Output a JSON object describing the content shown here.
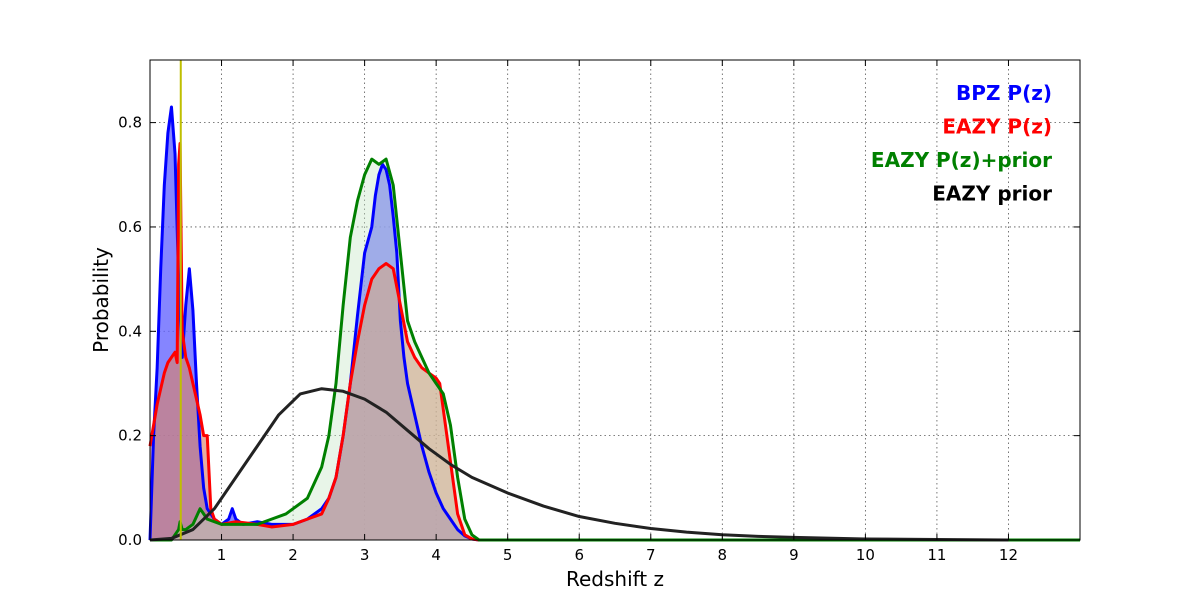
{
  "chart_data": {
    "type": "line",
    "title": "",
    "xlabel": "Redshift z",
    "ylabel": "Probability",
    "xlim": [
      0,
      13
    ],
    "ylim": [
      0,
      0.92
    ],
    "xticks": [
      1,
      2,
      3,
      4,
      5,
      6,
      7,
      8,
      9,
      10,
      11,
      12
    ],
    "yticks": [
      0.0,
      0.2,
      0.4,
      0.6,
      0.8
    ],
    "ytick_labels": [
      "0.0",
      "0.2",
      "0.4",
      "0.6",
      "0.8"
    ],
    "grid": true,
    "legend_position": "top-right",
    "vline": {
      "x": 0.43,
      "color": "#bfbf00"
    },
    "series": [
      {
        "name": "BPZ P(z)",
        "color": "#0000ff",
        "fill": "#6666ff",
        "fill_opacity": 0.8,
        "x": [
          0.0,
          0.05,
          0.1,
          0.15,
          0.2,
          0.25,
          0.3,
          0.35,
          0.4,
          0.45,
          0.5,
          0.55,
          0.6,
          0.65,
          0.7,
          0.75,
          0.8,
          0.9,
          1.0,
          1.1,
          1.15,
          1.2,
          1.3,
          1.5,
          1.7,
          2.0,
          2.2,
          2.4,
          2.5,
          2.6,
          2.7,
          2.8,
          2.9,
          3.0,
          3.1,
          3.15,
          3.2,
          3.25,
          3.3,
          3.35,
          3.4,
          3.45,
          3.5,
          3.55,
          3.6,
          3.7,
          3.8,
          3.9,
          4.0,
          4.1,
          4.2,
          4.3,
          4.4,
          4.5,
          4.6,
          5.0,
          6.0,
          8.0,
          10.0,
          12.0,
          13.0
        ],
        "y": [
          0.0,
          0.2,
          0.33,
          0.52,
          0.68,
          0.78,
          0.83,
          0.74,
          0.5,
          0.35,
          0.45,
          0.52,
          0.44,
          0.3,
          0.18,
          0.1,
          0.06,
          0.04,
          0.03,
          0.04,
          0.06,
          0.04,
          0.03,
          0.035,
          0.03,
          0.03,
          0.04,
          0.06,
          0.08,
          0.12,
          0.2,
          0.3,
          0.43,
          0.55,
          0.6,
          0.66,
          0.7,
          0.72,
          0.71,
          0.68,
          0.62,
          0.55,
          0.42,
          0.35,
          0.3,
          0.24,
          0.18,
          0.13,
          0.09,
          0.06,
          0.04,
          0.02,
          0.008,
          0.002,
          0.0,
          0.0,
          0.0,
          0.0,
          0.0,
          0.0,
          0.0
        ]
      },
      {
        "name": "EAZY P(z)",
        "color": "#ff0000",
        "fill": "#d9826b",
        "fill_opacity": 0.65,
        "x": [
          0.0,
          0.05,
          0.1,
          0.15,
          0.2,
          0.25,
          0.3,
          0.35,
          0.38,
          0.4,
          0.42,
          0.45,
          0.5,
          0.55,
          0.6,
          0.65,
          0.7,
          0.75,
          0.8,
          0.85,
          0.9,
          1.0,
          1.2,
          1.5,
          1.7,
          2.0,
          2.2,
          2.4,
          2.5,
          2.6,
          2.7,
          2.8,
          2.9,
          3.0,
          3.1,
          3.2,
          3.3,
          3.4,
          3.5,
          3.6,
          3.7,
          3.8,
          3.9,
          4.0,
          4.05,
          4.1,
          4.2,
          4.3,
          4.4,
          4.5,
          4.6,
          5.0,
          6.0,
          8.0,
          10.0,
          12.0,
          13.0
        ],
        "y": [
          0.18,
          0.22,
          0.26,
          0.29,
          0.32,
          0.34,
          0.35,
          0.36,
          0.34,
          0.72,
          0.76,
          0.4,
          0.35,
          0.33,
          0.3,
          0.27,
          0.24,
          0.2,
          0.2,
          0.06,
          0.04,
          0.03,
          0.035,
          0.03,
          0.025,
          0.03,
          0.04,
          0.05,
          0.08,
          0.12,
          0.2,
          0.3,
          0.38,
          0.45,
          0.5,
          0.52,
          0.53,
          0.52,
          0.45,
          0.38,
          0.35,
          0.33,
          0.32,
          0.31,
          0.3,
          0.25,
          0.15,
          0.05,
          0.01,
          0.002,
          0.0,
          0.0,
          0.0,
          0.0,
          0.0,
          0.0,
          0.0
        ]
      },
      {
        "name": "EAZY P(z)+prior",
        "color": "#008000",
        "fill": "#c6e6c6",
        "fill_opacity": 0.4,
        "x": [
          0.0,
          0.3,
          0.4,
          0.42,
          0.45,
          0.5,
          0.6,
          0.7,
          0.75,
          0.8,
          0.9,
          1.0,
          1.2,
          1.5,
          1.7,
          1.9,
          2.0,
          2.2,
          2.4,
          2.5,
          2.6,
          2.7,
          2.8,
          2.9,
          3.0,
          3.1,
          3.2,
          3.3,
          3.4,
          3.5,
          3.6,
          3.7,
          3.8,
          3.9,
          4.0,
          4.1,
          4.2,
          4.3,
          4.4,
          4.5,
          4.6,
          5.0,
          6.0,
          8.0,
          10.0,
          12.0,
          13.0
        ],
        "y": [
          0.0,
          0.0,
          0.02,
          0.035,
          0.02,
          0.02,
          0.03,
          0.06,
          0.05,
          0.04,
          0.035,
          0.03,
          0.03,
          0.03,
          0.04,
          0.05,
          0.06,
          0.08,
          0.14,
          0.2,
          0.3,
          0.45,
          0.58,
          0.65,
          0.7,
          0.73,
          0.72,
          0.73,
          0.68,
          0.55,
          0.42,
          0.38,
          0.35,
          0.32,
          0.3,
          0.28,
          0.22,
          0.12,
          0.04,
          0.01,
          0.0,
          0.0,
          0.0,
          0.0,
          0.0,
          0.0,
          0.0
        ]
      },
      {
        "name": "EAZY prior",
        "color": "#222222",
        "fill": null,
        "fill_opacity": 0,
        "x": [
          0.0,
          0.3,
          0.6,
          0.9,
          1.2,
          1.5,
          1.8,
          2.1,
          2.4,
          2.7,
          3.0,
          3.3,
          3.6,
          3.9,
          4.2,
          4.5,
          5.0,
          5.5,
          6.0,
          6.5,
          7.0,
          7.5,
          8.0,
          8.5,
          9.0,
          10.0,
          11.0,
          12.0
        ],
        "y": [
          0.0,
          0.003,
          0.02,
          0.06,
          0.12,
          0.18,
          0.24,
          0.28,
          0.29,
          0.285,
          0.27,
          0.245,
          0.21,
          0.175,
          0.145,
          0.12,
          0.09,
          0.065,
          0.045,
          0.032,
          0.022,
          0.015,
          0.01,
          0.007,
          0.005,
          0.002,
          0.001,
          0.0
        ]
      }
    ]
  }
}
